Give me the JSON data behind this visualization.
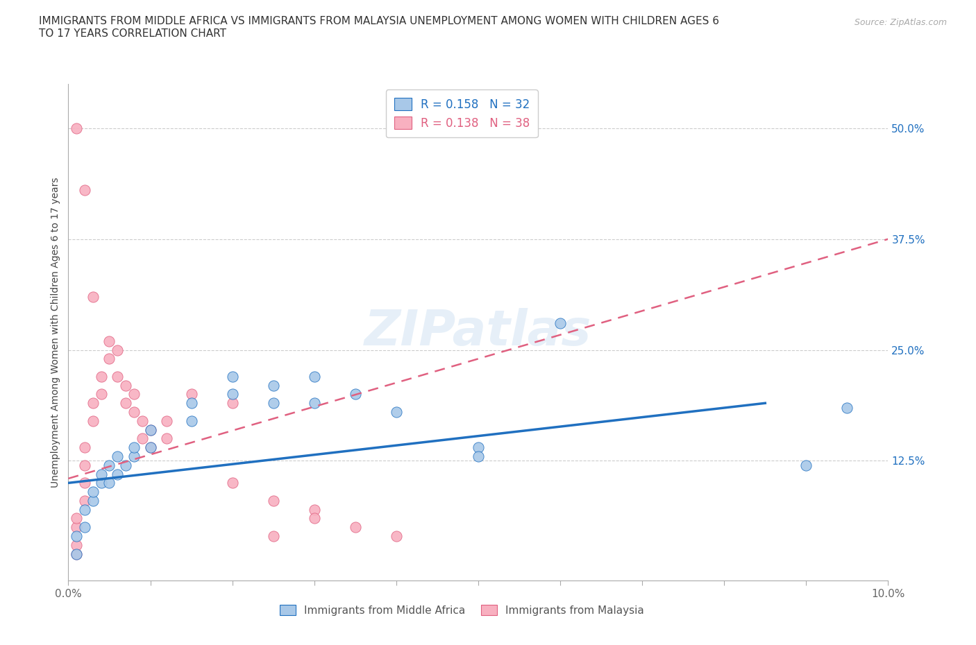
{
  "title": "IMMIGRANTS FROM MIDDLE AFRICA VS IMMIGRANTS FROM MALAYSIA UNEMPLOYMENT AMONG WOMEN WITH CHILDREN AGES 6\nTO 17 YEARS CORRELATION CHART",
  "source": "Source: ZipAtlas.com",
  "ylabel": "Unemployment Among Women with Children Ages 6 to 17 years",
  "xlim": [
    0.0,
    0.1
  ],
  "ylim": [
    -0.01,
    0.55
  ],
  "yticks_right": [
    0.0,
    0.125,
    0.25,
    0.375,
    0.5
  ],
  "ytick_labels_right": [
    "",
    "12.5%",
    "25.0%",
    "37.5%",
    "50.0%"
  ],
  "xticks": [
    0.0,
    0.01,
    0.02,
    0.03,
    0.04,
    0.05,
    0.06,
    0.07,
    0.08,
    0.09,
    0.1
  ],
  "blue_R": 0.158,
  "blue_N": 32,
  "pink_R": 0.138,
  "pink_N": 38,
  "blue_color": "#a8c8e8",
  "pink_color": "#f8b0c0",
  "blue_line_color": "#2070c0",
  "pink_line_color": "#e06080",
  "blue_scatter": [
    [
      0.001,
      0.02
    ],
    [
      0.001,
      0.04
    ],
    [
      0.002,
      0.05
    ],
    [
      0.002,
      0.07
    ],
    [
      0.003,
      0.08
    ],
    [
      0.003,
      0.09
    ],
    [
      0.004,
      0.1
    ],
    [
      0.004,
      0.11
    ],
    [
      0.005,
      0.1
    ],
    [
      0.005,
      0.12
    ],
    [
      0.006,
      0.11
    ],
    [
      0.006,
      0.13
    ],
    [
      0.007,
      0.12
    ],
    [
      0.008,
      0.13
    ],
    [
      0.008,
      0.14
    ],
    [
      0.01,
      0.14
    ],
    [
      0.01,
      0.16
    ],
    [
      0.015,
      0.17
    ],
    [
      0.015,
      0.19
    ],
    [
      0.02,
      0.2
    ],
    [
      0.02,
      0.22
    ],
    [
      0.025,
      0.21
    ],
    [
      0.025,
      0.19
    ],
    [
      0.03,
      0.19
    ],
    [
      0.03,
      0.22
    ],
    [
      0.035,
      0.2
    ],
    [
      0.04,
      0.18
    ],
    [
      0.05,
      0.14
    ],
    [
      0.05,
      0.13
    ],
    [
      0.06,
      0.28
    ],
    [
      0.09,
      0.12
    ],
    [
      0.095,
      0.185
    ]
  ],
  "pink_scatter": [
    [
      0.001,
      0.02
    ],
    [
      0.001,
      0.03
    ],
    [
      0.001,
      0.05
    ],
    [
      0.001,
      0.06
    ],
    [
      0.002,
      0.08
    ],
    [
      0.002,
      0.1
    ],
    [
      0.002,
      0.12
    ],
    [
      0.002,
      0.14
    ],
    [
      0.003,
      0.17
    ],
    [
      0.003,
      0.19
    ],
    [
      0.004,
      0.2
    ],
    [
      0.004,
      0.22
    ],
    [
      0.005,
      0.24
    ],
    [
      0.005,
      0.26
    ],
    [
      0.006,
      0.22
    ],
    [
      0.006,
      0.25
    ],
    [
      0.007,
      0.19
    ],
    [
      0.007,
      0.21
    ],
    [
      0.008,
      0.18
    ],
    [
      0.008,
      0.2
    ],
    [
      0.009,
      0.17
    ],
    [
      0.009,
      0.15
    ],
    [
      0.01,
      0.16
    ],
    [
      0.01,
      0.14
    ],
    [
      0.012,
      0.17
    ],
    [
      0.012,
      0.15
    ],
    [
      0.015,
      0.2
    ],
    [
      0.02,
      0.19
    ],
    [
      0.02,
      0.1
    ],
    [
      0.025,
      0.08
    ],
    [
      0.03,
      0.07
    ],
    [
      0.03,
      0.06
    ],
    [
      0.035,
      0.05
    ],
    [
      0.002,
      0.43
    ],
    [
      0.003,
      0.31
    ],
    [
      0.001,
      0.5
    ],
    [
      0.025,
      0.04
    ],
    [
      0.04,
      0.04
    ]
  ],
  "blue_trend": [
    0.0,
    0.1,
    0.085,
    0.19
  ],
  "pink_trend": [
    0.0,
    0.105,
    0.1,
    0.375
  ],
  "watermark_text": "ZIPatlas",
  "background_color": "#ffffff",
  "grid_color": "#cccccc"
}
